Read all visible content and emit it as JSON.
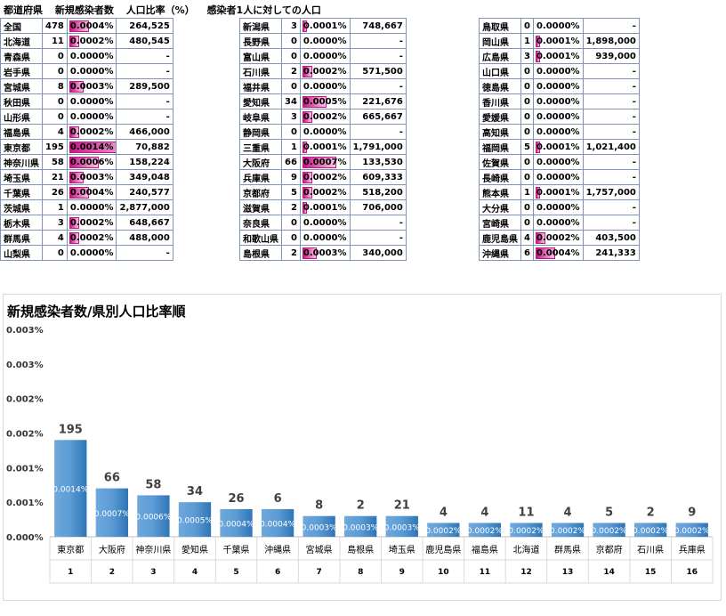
{
  "header": {
    "col_pref": "都道府県",
    "col_new": "新規感染者数",
    "col_ratio": "人口比率（%）",
    "col_pop": "感染者1人に対しての人口"
  },
  "table": {
    "bar_color": "#c71585",
    "max_pct": 0.0014,
    "groups": [
      [
        {
          "pref": "全国",
          "cases": "478",
          "pct": "0.0004%",
          "pop": "264,525"
        },
        {
          "pref": "北海道",
          "cases": "11",
          "pct": "0.0002%",
          "pop": "480,545"
        },
        {
          "pref": "青森県",
          "cases": "0",
          "pct": "0.0000%",
          "pop": "-"
        },
        {
          "pref": "岩手県",
          "cases": "0",
          "pct": "0.0000%",
          "pop": "-"
        },
        {
          "pref": "宮城県",
          "cases": "8",
          "pct": "0.0003%",
          "pop": "289,500"
        },
        {
          "pref": "秋田県",
          "cases": "0",
          "pct": "0.0000%",
          "pop": "-"
        },
        {
          "pref": "山形県",
          "cases": "0",
          "pct": "0.0000%",
          "pop": "-"
        },
        {
          "pref": "福島県",
          "cases": "4",
          "pct": "0.0002%",
          "pop": "466,000"
        },
        {
          "pref": "東京都",
          "cases": "195",
          "pct": "0.0014%",
          "pop": "70,882"
        },
        {
          "pref": "神奈川県",
          "cases": "58",
          "pct": "0.0006%",
          "pop": "158,224"
        },
        {
          "pref": "埼玉県",
          "cases": "21",
          "pct": "0.0003%",
          "pop": "349,048"
        },
        {
          "pref": "千葉県",
          "cases": "26",
          "pct": "0.0004%",
          "pop": "240,577"
        },
        {
          "pref": "茨城県",
          "cases": "1",
          "pct": "0.0000%",
          "pop": "2,877,000"
        },
        {
          "pref": "栃木県",
          "cases": "3",
          "pct": "0.0002%",
          "pop": "648,667"
        },
        {
          "pref": "群馬県",
          "cases": "4",
          "pct": "0.0002%",
          "pop": "488,000"
        },
        {
          "pref": "山梨県",
          "cases": "0",
          "pct": "0.0000%",
          "pop": "-"
        }
      ],
      [
        {
          "pref": "新潟県",
          "cases": "3",
          "pct": "0.0001%",
          "pop": "748,667"
        },
        {
          "pref": "長野県",
          "cases": "0",
          "pct": "0.0000%",
          "pop": "-"
        },
        {
          "pref": "富山県",
          "cases": "0",
          "pct": "0.0000%",
          "pop": "-"
        },
        {
          "pref": "石川県",
          "cases": "2",
          "pct": "0.0002%",
          "pop": "571,500"
        },
        {
          "pref": "福井県",
          "cases": "0",
          "pct": "0.0000%",
          "pop": "-"
        },
        {
          "pref": "愛知県",
          "cases": "34",
          "pct": "0.0005%",
          "pop": "221,676"
        },
        {
          "pref": "岐阜県",
          "cases": "3",
          "pct": "0.0002%",
          "pop": "665,667"
        },
        {
          "pref": "静岡県",
          "cases": "0",
          "pct": "0.0000%",
          "pop": "-"
        },
        {
          "pref": "三重県",
          "cases": "1",
          "pct": "0.0001%",
          "pop": "1,791,000"
        },
        {
          "pref": "大阪府",
          "cases": "66",
          "pct": "0.0007%",
          "pop": "133,530"
        },
        {
          "pref": "兵庫県",
          "cases": "9",
          "pct": "0.0002%",
          "pop": "609,333"
        },
        {
          "pref": "京都府",
          "cases": "5",
          "pct": "0.0002%",
          "pop": "518,200"
        },
        {
          "pref": "滋賀県",
          "cases": "2",
          "pct": "0.0001%",
          "pop": "706,000"
        },
        {
          "pref": "奈良県",
          "cases": "0",
          "pct": "0.0000%",
          "pop": "-"
        },
        {
          "pref": "和歌山県",
          "cases": "0",
          "pct": "0.0000%",
          "pop": "-"
        },
        {
          "pref": "島根県",
          "cases": "2",
          "pct": "0.0003%",
          "pop": "340,000"
        }
      ],
      [
        {
          "pref": "鳥取県",
          "cases": "0",
          "pct": "0.0000%",
          "pop": "-"
        },
        {
          "pref": "岡山県",
          "cases": "1",
          "pct": "0.0001%",
          "pop": "1,898,000"
        },
        {
          "pref": "広島県",
          "cases": "3",
          "pct": "0.0001%",
          "pop": "939,000"
        },
        {
          "pref": "山口県",
          "cases": "0",
          "pct": "0.0000%",
          "pop": "-"
        },
        {
          "pref": "徳島県",
          "cases": "0",
          "pct": "0.0000%",
          "pop": "-"
        },
        {
          "pref": "香川県",
          "cases": "0",
          "pct": "0.0000%",
          "pop": "-"
        },
        {
          "pref": "愛媛県",
          "cases": "0",
          "pct": "0.0000%",
          "pop": "-"
        },
        {
          "pref": "高知県",
          "cases": "0",
          "pct": "0.0000%",
          "pop": "-"
        },
        {
          "pref": "福岡県",
          "cases": "5",
          "pct": "0.0001%",
          "pop": "1,021,400"
        },
        {
          "pref": "佐賀県",
          "cases": "0",
          "pct": "0.0000%",
          "pop": "-"
        },
        {
          "pref": "長崎県",
          "cases": "0",
          "pct": "0.0000%",
          "pop": "-"
        },
        {
          "pref": "熊本県",
          "cases": "1",
          "pct": "0.0001%",
          "pop": "1,757,000"
        },
        {
          "pref": "大分県",
          "cases": "0",
          "pct": "0.0000%",
          "pop": "-"
        },
        {
          "pref": "宮崎県",
          "cases": "0",
          "pct": "0.0000%",
          "pop": "-"
        },
        {
          "pref": "鹿児島県",
          "cases": "4",
          "pct": "0.0002%",
          "pop": "403,500"
        },
        {
          "pref": "沖縄県",
          "cases": "6",
          "pct": "0.0004%",
          "pop": "241,333"
        }
      ]
    ]
  },
  "chart_data": {
    "type": "bar",
    "title": "新規感染者数/県別人口比率順",
    "categories": [
      "東京都",
      "大阪府",
      "神奈川県",
      "愛知県",
      "千葉県",
      "沖縄県",
      "宮城県",
      "島根県",
      "埼玉県",
      "鹿児島県",
      "福島県",
      "北海道",
      "群馬県",
      "京都府",
      "石川県",
      "兵庫県"
    ],
    "ranks": [
      "1",
      "2",
      "3",
      "4",
      "5",
      "6",
      "7",
      "8",
      "9",
      "10",
      "11",
      "12",
      "13",
      "14",
      "15",
      "16"
    ],
    "values": [
      0.0014,
      0.0007,
      0.0006,
      0.0005,
      0.0004,
      0.0004,
      0.0003,
      0.0003,
      0.0003,
      0.0002,
      0.0002,
      0.0002,
      0.0002,
      0.0002,
      0.0002,
      0.0002
    ],
    "bar_labels": [
      "0.0014%",
      "0.0007%",
      "0.0006%",
      "0.0005%",
      "0.0004%",
      "0.0004%",
      "0.0003%",
      "0.0003%",
      "0.0003%",
      "0.0002%",
      "0.0002%",
      "0.0002%",
      "0.0002%",
      "0.0002%",
      "0.0002%",
      "0.0002%"
    ],
    "top_labels": [
      "195",
      "66",
      "58",
      "34",
      "26",
      "6",
      "8",
      "2",
      "21",
      "4",
      "4",
      "11",
      "4",
      "5",
      "2",
      "9"
    ],
    "y_ticks": [
      "0.000%",
      "0.001%",
      "0.001%",
      "0.002%",
      "0.002%",
      "0.003%",
      "0.003%"
    ],
    "ylim": [
      0,
      0.003
    ],
    "grid": false,
    "bar_color": "#5b9bd5"
  }
}
